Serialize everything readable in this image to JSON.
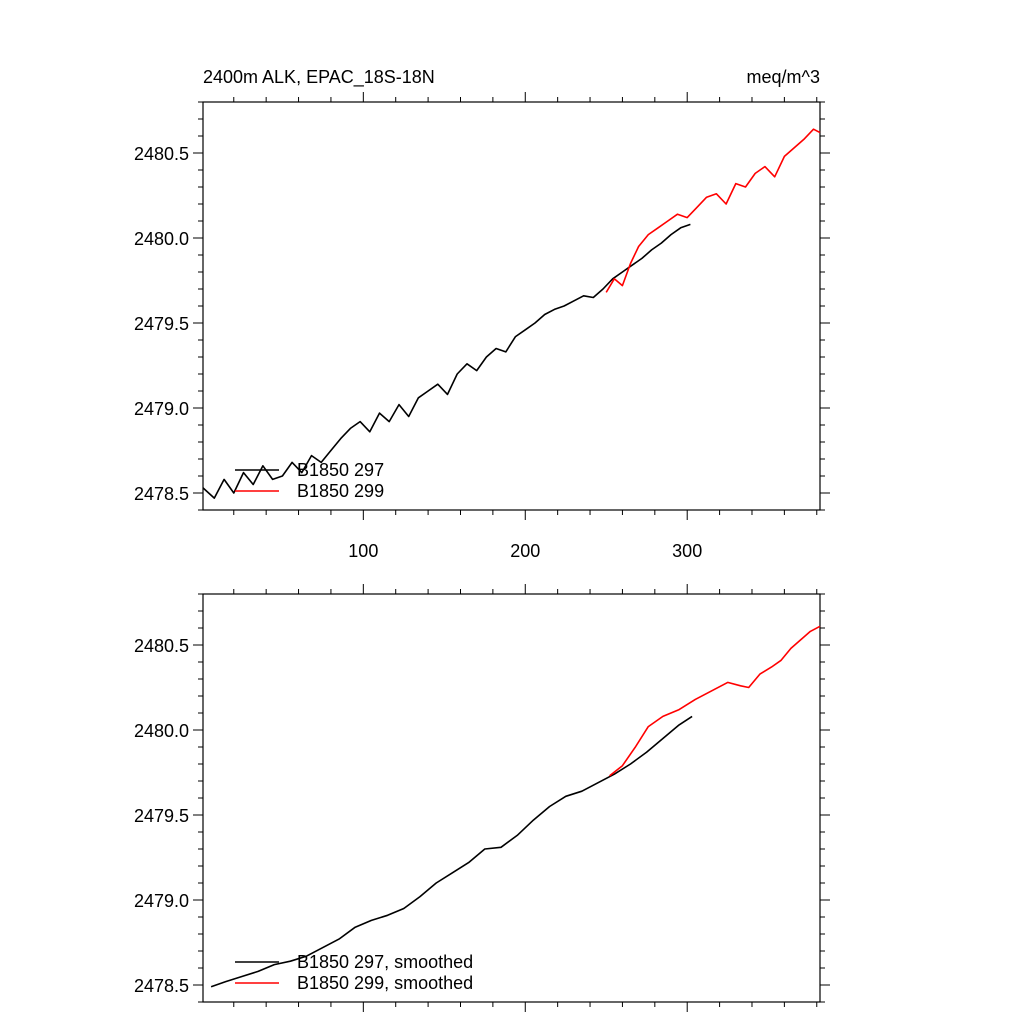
{
  "header": {
    "title": "2400m ALK, EPAC_18S-18N",
    "units": "meq/m^3"
  },
  "colors": {
    "run_297": "#000000",
    "run_299": "#ff0000"
  },
  "chart_data": [
    {
      "type": "line",
      "panel": "top",
      "title": "2400m ALK, EPAC_18S-18N",
      "units": "meq/m^3",
      "xlim": [
        1,
        382
      ],
      "ylim": [
        2478.4,
        2480.8
      ],
      "x_ticks": [
        100,
        200,
        300
      ],
      "x_tick_labels": [
        "100",
        "200",
        "300"
      ],
      "y_ticks": [
        2478.5,
        2479.0,
        2479.5,
        2480.0,
        2480.5
      ],
      "y_tick_labels": [
        "2478.5",
        "2479.0",
        "2479.5",
        "2480.0",
        "2480.5"
      ],
      "legend_position": "bottom-left",
      "series": [
        {
          "name": "B1850 297",
          "color": "#000000",
          "x": [
            1,
            8,
            14,
            20,
            26,
            32,
            38,
            44,
            50,
            56,
            62,
            68,
            74,
            80,
            86,
            92,
            98,
            104,
            110,
            116,
            122,
            128,
            134,
            140,
            146,
            152,
            158,
            164,
            170,
            176,
            182,
            188,
            194,
            200,
            206,
            212,
            218,
            224,
            230,
            236,
            242,
            248,
            254,
            260,
            266,
            272,
            278,
            284,
            290,
            296,
            302
          ],
          "values": [
            2478.53,
            2478.47,
            2478.58,
            2478.5,
            2478.62,
            2478.55,
            2478.66,
            2478.58,
            2478.6,
            2478.68,
            2478.62,
            2478.72,
            2478.68,
            2478.75,
            2478.82,
            2478.88,
            2478.92,
            2478.86,
            2478.97,
            2478.92,
            2479.02,
            2478.95,
            2479.06,
            2479.1,
            2479.14,
            2479.08,
            2479.2,
            2479.26,
            2479.22,
            2479.3,
            2479.35,
            2479.33,
            2479.42,
            2479.46,
            2479.5,
            2479.55,
            2479.58,
            2479.6,
            2479.63,
            2479.66,
            2479.65,
            2479.7,
            2479.76,
            2479.8,
            2479.84,
            2479.88,
            2479.93,
            2479.97,
            2480.02,
            2480.06,
            2480.08
          ]
        },
        {
          "name": "B1850 299",
          "color": "#ff0000",
          "x": [
            250,
            255,
            260,
            265,
            270,
            276,
            282,
            288,
            294,
            300,
            306,
            312,
            318,
            324,
            330,
            336,
            342,
            348,
            354,
            360,
            366,
            372,
            378,
            382
          ],
          "values": [
            2479.68,
            2479.76,
            2479.72,
            2479.85,
            2479.95,
            2480.02,
            2480.06,
            2480.1,
            2480.14,
            2480.12,
            2480.18,
            2480.24,
            2480.26,
            2480.2,
            2480.32,
            2480.3,
            2480.38,
            2480.42,
            2480.36,
            2480.48,
            2480.53,
            2480.58,
            2480.64,
            2480.62
          ]
        }
      ]
    },
    {
      "type": "line",
      "panel": "bottom",
      "xlim": [
        1,
        382
      ],
      "ylim": [
        2478.4,
        2480.8
      ],
      "y_ticks": [
        2478.5,
        2479.0,
        2479.5,
        2480.0,
        2480.5
      ],
      "y_tick_labels": [
        "2478.5",
        "2479.0",
        "2479.5",
        "2480.0",
        "2480.5"
      ],
      "legend_position": "bottom-left",
      "series": [
        {
          "name": "B1850 297, smoothed",
          "color": "#000000",
          "x": [
            6,
            15,
            25,
            35,
            45,
            55,
            65,
            75,
            85,
            95,
            105,
            115,
            125,
            135,
            145,
            155,
            165,
            175,
            185,
            195,
            205,
            215,
            225,
            235,
            245,
            255,
            265,
            275,
            285,
            295,
            303
          ],
          "values": [
            2478.49,
            2478.52,
            2478.55,
            2478.58,
            2478.62,
            2478.64,
            2478.67,
            2478.72,
            2478.77,
            2478.84,
            2478.88,
            2478.91,
            2478.95,
            2479.02,
            2479.1,
            2479.16,
            2479.22,
            2479.3,
            2479.31,
            2479.38,
            2479.47,
            2479.55,
            2479.61,
            2479.64,
            2479.69,
            2479.74,
            2479.8,
            2479.87,
            2479.95,
            2480.03,
            2480.08
          ]
        },
        {
          "name": "B1850 299, smoothed",
          "color": "#ff0000",
          "x": [
            252,
            260,
            268,
            276,
            285,
            295,
            305,
            315,
            325,
            333,
            338,
            345,
            352,
            358,
            364,
            370,
            376,
            382
          ],
          "values": [
            2479.73,
            2479.79,
            2479.9,
            2480.02,
            2480.08,
            2480.12,
            2480.18,
            2480.23,
            2480.28,
            2480.26,
            2480.25,
            2480.33,
            2480.37,
            2480.41,
            2480.48,
            2480.53,
            2480.58,
            2480.61
          ]
        }
      ]
    }
  ]
}
